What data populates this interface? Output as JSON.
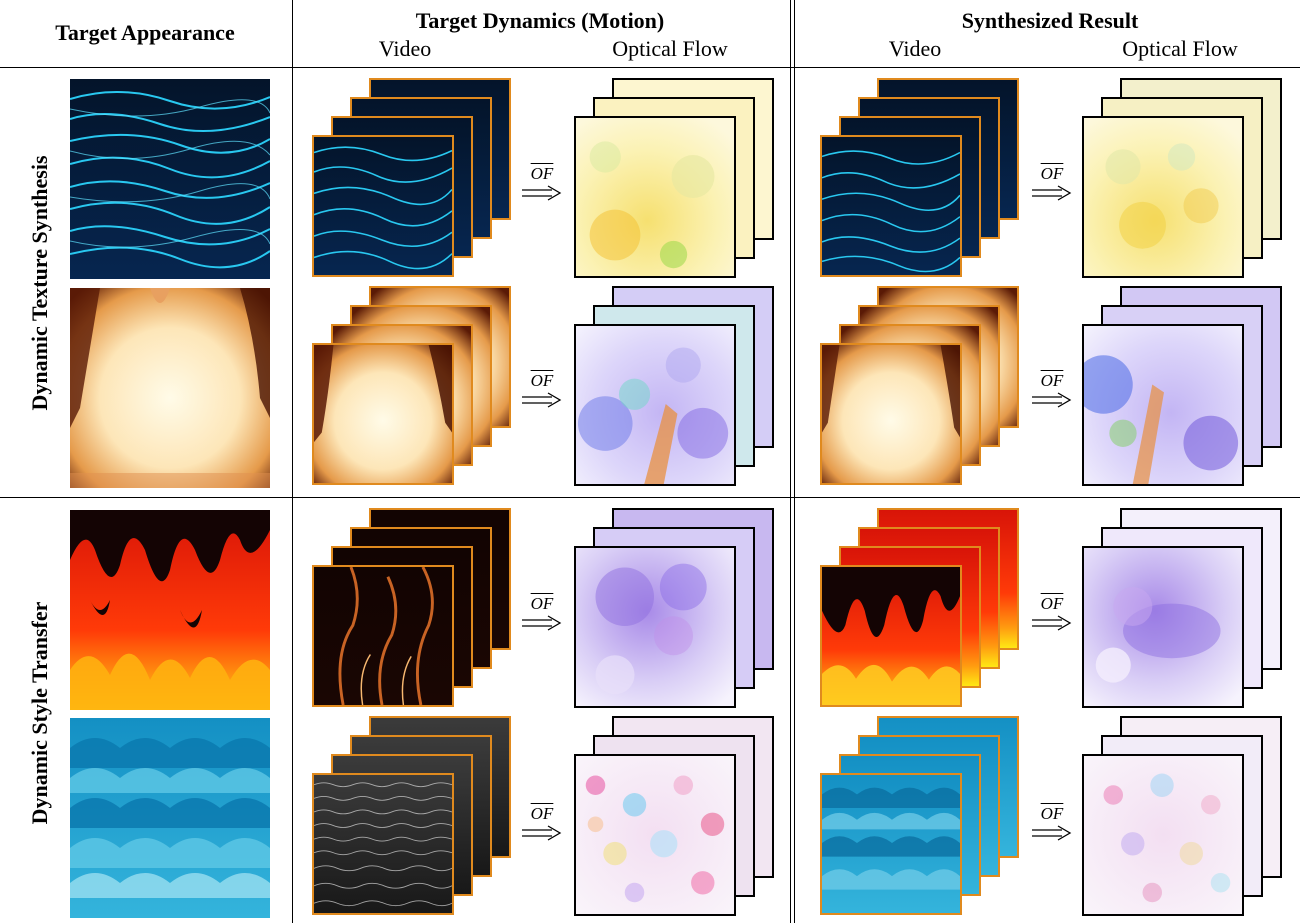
{
  "headers": {
    "target_appearance": "Target Appearance",
    "target_dynamics": "Target Dynamics (Motion)",
    "synthesized_result": "Synthesized Result",
    "video": "Video",
    "optical_flow": "Optical Flow"
  },
  "row_groups": [
    {
      "label": "Dynamic Texture Synthesis"
    },
    {
      "label": "Dynamic Style Transfer"
    }
  ],
  "arrow_label": "OF",
  "rows": [
    {
      "name": "row-water-lines",
      "appearance": "glowing-water-lines",
      "dynamics_video": "glowing-water-lines",
      "dynamics_flow": "yellow-flow",
      "result_video": "glowing-water-lines",
      "result_flow": "yellow-flow"
    },
    {
      "name": "row-bright-fire",
      "appearance": "bright-fire",
      "dynamics_video": "bright-fire",
      "dynamics_flow": "blue-purple-flow",
      "result_video": "bright-fire",
      "result_flow": "blue-purple-flow"
    },
    {
      "name": "row-cartoon-fire",
      "appearance": "cartoon-flames",
      "dynamics_video": "real-fire",
      "dynamics_flow": "violet-flow",
      "result_video": "cartoon-flames",
      "result_flow": "violet-flow"
    },
    {
      "name": "row-cartoon-waves",
      "appearance": "cartoon-waves",
      "dynamics_video": "ocean-surface",
      "dynamics_flow": "speckled-flow",
      "result_video": "cartoon-waves",
      "result_flow": "speckled-flow"
    }
  ],
  "colors": {
    "frame_orange": "#e08a1e",
    "frame_black": "#000000"
  }
}
